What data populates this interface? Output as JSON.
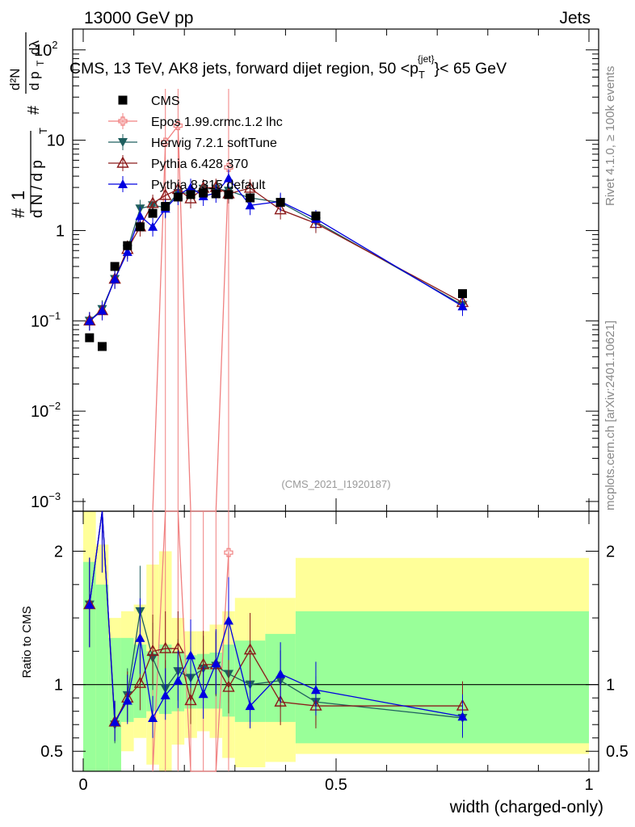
{
  "header": {
    "left": "13000 GeV pp",
    "right": "Jets"
  },
  "chart_data": {
    "type": "scatter",
    "title": "CMS, 13 TeV, AK8 jets, forward dijet region, 50 <p_T^{jet}< 65 GeV",
    "title_parts": {
      "prefix": "CMS, 13 TeV, AK8 jets, forward dijet region, 50 <p",
      "sub": "T",
      "sup": "{jet}",
      "suffix": "}< 65 GeV"
    },
    "ylabel_parts": {
      "frac_num": "1",
      "frac_den": "d N / d p",
      "hash": "#",
      "d2n": "d²N",
      "dpt": "d p",
      "T": "T",
      "dlambda": "dλ"
    },
    "xlabel": "width (charged-only)",
    "ratio_ylabel": "Ratio to CMS",
    "side_label_1": "Rivet 4.1.0, ≥ 100k events",
    "side_label_2": "mcplots.cern.ch [arXiv:2401.10621]",
    "analysis_label": "(CMS_2021_I1920187)",
    "xlim": [
      0,
      1
    ],
    "ylim_main": [
      0.00078,
      170
    ],
    "ylim_ratio": [
      0.35,
      2.3
    ],
    "x_ticks": [
      "0",
      "0.5",
      "1"
    ],
    "y_ticks_main": [
      {
        "base": "10",
        "exp": "2",
        "value": 100
      },
      {
        "base": "10",
        "exp": "",
        "value": 10
      },
      {
        "base": "1",
        "exp": "",
        "value": 1
      },
      {
        "base": "10",
        "exp": "−1",
        "value": 0.1
      },
      {
        "base": "10",
        "exp": "−2",
        "value": 0.01
      },
      {
        "base": "10",
        "exp": "−3",
        "value": 0.001
      }
    ],
    "y_ticks_ratio": [
      "0.5",
      "1",
      "2"
    ],
    "bins": [
      0,
      0.025,
      0.05,
      0.075,
      0.1,
      0.125,
      0.15,
      0.175,
      0.2,
      0.225,
      0.25,
      0.275,
      0.3,
      0.36,
      0.42,
      0.5,
      1.0
    ],
    "band_yellow": [
      [
        0.35,
        2.3
      ],
      [
        0.35,
        2.05
      ],
      [
        0.35,
        1.5
      ],
      [
        0.5,
        1.55
      ],
      [
        0.6,
        1.6
      ],
      [
        0.4,
        1.9
      ],
      [
        0.35,
        2.0
      ],
      [
        0.55,
        1.5
      ],
      [
        0.6,
        1.4
      ],
      [
        0.65,
        1.4
      ],
      [
        0.6,
        1.45
      ],
      [
        0.45,
        1.55
      ],
      [
        0.38,
        1.65
      ],
      [
        0.42,
        1.65
      ],
      [
        0.48,
        1.95
      ],
      [
        0.48,
        1.95
      ]
    ],
    "band_green": [
      [
        0.35,
        1.92
      ],
      [
        0.35,
        1.75
      ],
      [
        0.35,
        1.35
      ],
      [
        0.72,
        1.35
      ],
      [
        0.75,
        1.3
      ],
      [
        0.8,
        1.25
      ],
      [
        0.78,
        1.3
      ],
      [
        0.8,
        1.25
      ],
      [
        0.82,
        1.22
      ],
      [
        0.82,
        1.23
      ],
      [
        0.82,
        1.24
      ],
      [
        0.76,
        1.3
      ],
      [
        0.72,
        1.33
      ],
      [
        0.72,
        1.38
      ],
      [
        0.56,
        1.55
      ],
      [
        0.56,
        1.55
      ]
    ],
    "series": [
      {
        "name": "CMS",
        "color": "#000000",
        "marker": "square",
        "x": [
          0.0125,
          0.0375,
          0.0625,
          0.0875,
          0.1125,
          0.1375,
          0.1625,
          0.1875,
          0.2125,
          0.2375,
          0.2625,
          0.2875,
          0.33,
          0.39,
          0.46,
          0.75
        ],
        "y": [
          0.065,
          0.052,
          0.4,
          0.68,
          1.1,
          1.55,
          1.85,
          2.35,
          2.5,
          2.6,
          2.55,
          2.5,
          2.3,
          2.05,
          1.45,
          0.2
        ]
      },
      {
        "name": "Epos 1.99.crmc.1.2 lhc",
        "color": "#f08080",
        "marker": "cross",
        "x": [
          0.1375,
          0.1625,
          0.1875,
          0.2125,
          0.2375,
          0.2625,
          0.2875
        ],
        "y": [
          0.0001,
          9.5,
          14.5,
          0.0001,
          0.0001,
          0.0001,
          5.0
        ],
        "ratio": [
          0.1,
          6.0,
          7.0,
          0.1,
          0.1,
          0.1,
          1.99
        ]
      },
      {
        "name": "Herwig 7.2.1 softTune",
        "color": "#1f5f5f",
        "marker": "triangle-down",
        "x": [
          0.0125,
          0.0375,
          0.0625,
          0.0875,
          0.1125,
          0.1375,
          0.1625,
          0.1875,
          0.2125,
          0.2375,
          0.2625,
          0.2875,
          0.33,
          0.39,
          0.46,
          0.75
        ],
        "y": [
          0.1,
          0.135,
          0.29,
          0.62,
          1.75,
          1.9,
          1.8,
          2.6,
          2.6,
          2.9,
          2.9,
          2.75,
          2.3,
          2.05,
          1.25,
          0.15
        ],
        "ratio": [
          1.6,
          2.3,
          0.7,
          0.92,
          1.55,
          1.2,
          0.97,
          1.1,
          1.05,
          1.12,
          1.14,
          1.08,
          1.0,
          1.03,
          0.87,
          0.75
        ]
      },
      {
        "name": "Pythia 6.428 370",
        "color": "#8b1a1a",
        "marker": "triangle-open",
        "x": [
          0.0125,
          0.0375,
          0.0625,
          0.0875,
          0.1125,
          0.1375,
          0.1625,
          0.1875,
          0.2125,
          0.2375,
          0.2625,
          0.2875,
          0.33,
          0.39,
          0.46,
          0.75
        ],
        "y": [
          0.1,
          0.13,
          0.29,
          0.62,
          1.1,
          2.0,
          2.45,
          2.85,
          2.25,
          2.95,
          3.0,
          2.55,
          2.95,
          1.7,
          1.2,
          0.16
        ],
        "ratio": [
          1.6,
          2.3,
          0.72,
          0.9,
          1.01,
          1.25,
          1.27,
          1.27,
          0.88,
          1.15,
          1.15,
          0.98,
          1.26,
          0.87,
          0.84,
          0.84
        ]
      },
      {
        "name": "Pythia 8.315 default",
        "color": "#0000e0",
        "marker": "triangle",
        "x": [
          0.0125,
          0.0375,
          0.0625,
          0.0875,
          0.1125,
          0.1375,
          0.1625,
          0.1875,
          0.2125,
          0.2375,
          0.2625,
          0.2875,
          0.33,
          0.39,
          0.46,
          0.75
        ],
        "y": [
          0.1,
          0.13,
          0.29,
          0.58,
          1.45,
          1.1,
          1.75,
          2.45,
          3.0,
          2.4,
          2.6,
          3.8,
          1.9,
          2.1,
          1.35,
          0.145
        ],
        "ratio": [
          1.6,
          2.3,
          0.72,
          0.88,
          1.35,
          0.75,
          0.92,
          1.03,
          1.22,
          0.93,
          1.16,
          1.48,
          0.84,
          1.08,
          0.96,
          0.76
        ]
      }
    ],
    "legend_position": "top-left"
  }
}
